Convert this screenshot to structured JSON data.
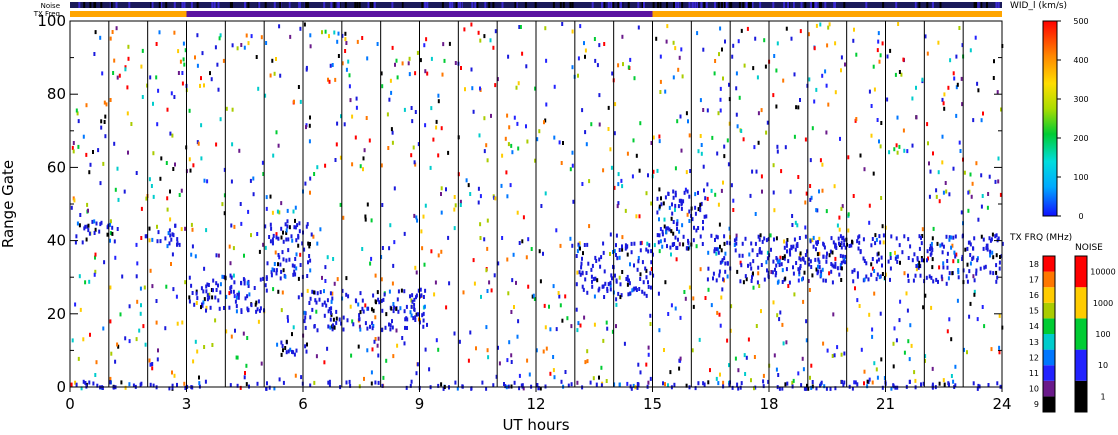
{
  "chart_data": {
    "type": "heatmap",
    "xlabel": "UT hours",
    "ylabel": "Range Gate",
    "xlim": [
      0,
      24
    ],
    "ylim": [
      0,
      100
    ],
    "x_ticks": [
      "0",
      "3",
      "6",
      "9",
      "12",
      "15",
      "18",
      "21",
      "24"
    ],
    "y_ticks": [
      "0",
      "20",
      "40",
      "60",
      "80",
      "100"
    ],
    "minor_x_gridlines_every_hours": 1,
    "top_bars": {
      "noise_label": "Noise",
      "txfreq_label": "TX Freq",
      "txfreq_segments": [
        {
          "from": 0,
          "to": 3,
          "color": "#ffa500"
        },
        {
          "from": 3,
          "to": 15,
          "color": "#5a14a0"
        },
        {
          "from": 15,
          "to": 24,
          "color": "#ffa500"
        }
      ]
    },
    "colorbars": {
      "width": {
        "title": "WID_l (km/s)",
        "ticks": [
          "0",
          "100",
          "200",
          "300",
          "400",
          "500"
        ],
        "range": [
          0,
          500
        ]
      },
      "txfreq": {
        "title": "TX FRQ (MHz)",
        "ticks": [
          "9",
          "10",
          "11",
          "12",
          "13",
          "14",
          "15",
          "16",
          "17",
          "18"
        ],
        "colors": [
          "#000000",
          "#6a1a8a",
          "#2222ff",
          "#0077ff",
          "#00cccc",
          "#00cc33",
          "#aacc00",
          "#ffcc00",
          "#ff7700",
          "#ff0000"
        ]
      },
      "noise": {
        "title": "NOISE",
        "ticks": [
          "1",
          "10",
          "100",
          "1000",
          "10000"
        ],
        "colors": [
          "#000000",
          "#2222ff",
          "#00cc33",
          "#ffcc00",
          "#ff0000"
        ]
      }
    },
    "echo_bands": [
      {
        "x0": 0.1,
        "x1": 1.3,
        "g0": 40,
        "g1": 46,
        "color": "#1a1adc"
      },
      {
        "x0": 1.9,
        "x1": 2.8,
        "g0": 39,
        "g1": 45,
        "color": "#1a1adc"
      },
      {
        "x0": 3.0,
        "x1": 5.1,
        "g0": 21,
        "g1": 31,
        "color": "#1a1adc"
      },
      {
        "x0": 5.0,
        "x1": 6.2,
        "g0": 30,
        "g1": 46,
        "color": "#1a1adc"
      },
      {
        "x0": 5.1,
        "x1": 6.1,
        "g0": 9,
        "g1": 13,
        "color": "#1a1adc"
      },
      {
        "x0": 6.0,
        "x1": 9.2,
        "g0": 16,
        "g1": 27,
        "color": "#1a1adc"
      },
      {
        "x0": 13.0,
        "x1": 15.0,
        "g0": 25,
        "g1": 40,
        "color": "#1a1adc"
      },
      {
        "x0": 15.1,
        "x1": 16.4,
        "g0": 38,
        "g1": 55,
        "color": "#1a1adc"
      },
      {
        "x0": 16.4,
        "x1": 24.0,
        "g0": 29,
        "g1": 42,
        "color": "#1a1adc"
      },
      {
        "x0": 0.0,
        "x1": 24.0,
        "g0": 0,
        "g1": 2,
        "color": "#1a1adc"
      }
    ]
  }
}
